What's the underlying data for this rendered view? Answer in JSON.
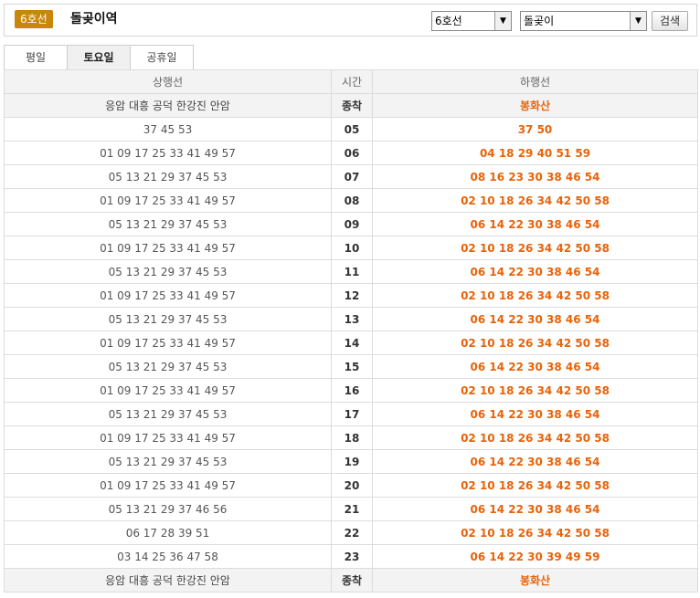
{
  "header": {
    "line_badge": "6호선",
    "station_name": "돌곶이역",
    "line_select_value": "6호선",
    "station_select_value": "돌곶이",
    "search_label": "검색",
    "accent_color": "#c8860a"
  },
  "tabs": [
    {
      "label": "평일",
      "active": false
    },
    {
      "label": "토요일",
      "active": true
    },
    {
      "label": "공휴일",
      "active": false
    }
  ],
  "table": {
    "headers": {
      "up": "상행선",
      "hour": "시간",
      "down": "하행선"
    },
    "first_row": {
      "up": "응암 대흥 공덕 한강진 안암",
      "hour": "종착",
      "down": "봉화산"
    },
    "rows": [
      {
        "up": "37 45 53",
        "hour": "05",
        "down": "37 50"
      },
      {
        "up": "01 09 17 25 33 41 49 57",
        "hour": "06",
        "down": "04 18 29 40 51 59"
      },
      {
        "up": "05 13 21 29 37 45 53",
        "hour": "07",
        "down": "08 16 23 30 38 46 54"
      },
      {
        "up": "01 09 17 25 33 41 49 57",
        "hour": "08",
        "down": "02 10 18 26 34 42 50 58"
      },
      {
        "up": "05 13 21 29 37 45 53",
        "hour": "09",
        "down": "06 14 22 30 38 46 54"
      },
      {
        "up": "01 09 17 25 33 41 49 57",
        "hour": "10",
        "down": "02 10 18 26 34 42 50 58"
      },
      {
        "up": "05 13 21 29 37 45 53",
        "hour": "11",
        "down": "06 14 22 30 38 46 54"
      },
      {
        "up": "01 09 17 25 33 41 49 57",
        "hour": "12",
        "down": "02 10 18 26 34 42 50 58"
      },
      {
        "up": "05 13 21 29 37 45 53",
        "hour": "13",
        "down": "06 14 22 30 38 46 54"
      },
      {
        "up": "01 09 17 25 33 41 49 57",
        "hour": "14",
        "down": "02 10 18 26 34 42 50 58"
      },
      {
        "up": "05 13 21 29 37 45 53",
        "hour": "15",
        "down": "06 14 22 30 38 46 54"
      },
      {
        "up": "01 09 17 25 33 41 49 57",
        "hour": "16",
        "down": "02 10 18 26 34 42 50 58"
      },
      {
        "up": "05 13 21 29 37 45 53",
        "hour": "17",
        "down": "06 14 22 30 38 46 54"
      },
      {
        "up": "01 09 17 25 33 41 49 57",
        "hour": "18",
        "down": "02 10 18 26 34 42 50 58"
      },
      {
        "up": "05 13 21 29 37 45 53",
        "hour": "19",
        "down": "06 14 22 30 38 46 54"
      },
      {
        "up": "01 09 17 25 33 41 49 57",
        "hour": "20",
        "down": "02 10 18 26 34 42 50 58"
      },
      {
        "up": "05 13 21 29 37 46 56",
        "hour": "21",
        "down": "06 14 22 30 38 46 54"
      },
      {
        "up": "06 17 28 39 51",
        "hour": "22",
        "down": "02 10 18 26 34 42 50 58"
      },
      {
        "up": "03 14 25 36 47 58",
        "hour": "23",
        "down": "06 14 22 30 39 49 59"
      }
    ],
    "last_row": {
      "up": "응암 대흥 공덕 한강진 안암",
      "hour": "종착",
      "down": "봉화산"
    },
    "down_color": "#e8630a"
  }
}
